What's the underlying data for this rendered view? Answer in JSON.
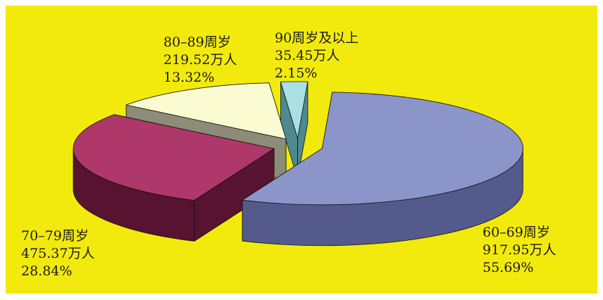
{
  "chart_data": {
    "type": "pie",
    "style": "3d-exploded",
    "title": "",
    "background": "#f2ea0c",
    "slices": [
      {
        "category": "60–69周岁",
        "value": 917.95,
        "value_text": "917.95万人",
        "percent": 55.69,
        "percent_text": "55.69%",
        "top_color": "#8c95c9",
        "side_color": "#545a8c"
      },
      {
        "category": "70–79周岁",
        "value": 475.37,
        "value_text": "475.37万人",
        "percent": 28.84,
        "percent_text": "28.84%",
        "top_color": "#ad3869",
        "side_color": "#581331"
      },
      {
        "category": "80–89周岁",
        "value": 219.52,
        "value_text": "219.52万人",
        "percent": 13.32,
        "percent_text": "13.32%",
        "top_color": "#fbfbd1",
        "side_color": "#8c8c78"
      },
      {
        "category": "90周岁及以上",
        "value": 35.45,
        "value_text": "35.45万人",
        "percent": 2.15,
        "percent_text": "2.15%",
        "top_color": "#a9e0e4",
        "side_color": "#4c8a90"
      }
    ]
  }
}
